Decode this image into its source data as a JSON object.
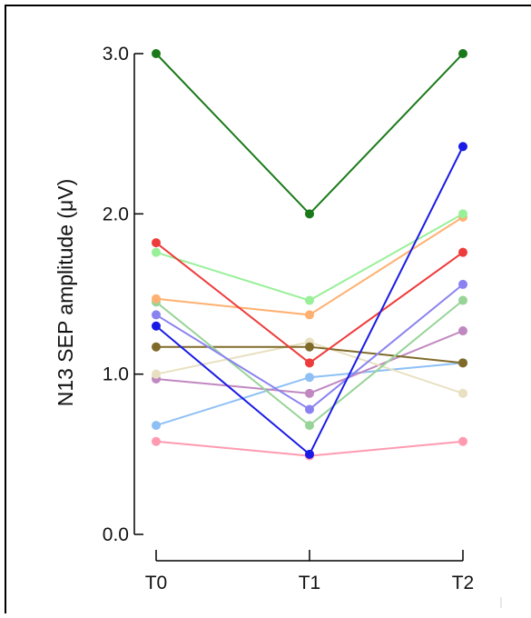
{
  "chart_data": {
    "type": "line",
    "title": "",
    "xlabel": "",
    "ylabel": "N13 SEP amplitude (μV)",
    "categories": [
      "T0",
      "T1",
      "T2"
    ],
    "ylim": [
      0,
      3.0
    ],
    "yticks": [
      "0.0",
      "1.0",
      "2.0",
      "3.0"
    ],
    "grid": false,
    "legend": "none",
    "series": [
      {
        "color": "#1a7a1a",
        "values": [
          3.0,
          2.0,
          3.0
        ]
      },
      {
        "color": "#1a1ae6",
        "values": [
          1.3,
          0.5,
          2.42
        ]
      },
      {
        "color": "#ff9ab0",
        "values": [
          0.58,
          0.49,
          0.58
        ]
      },
      {
        "color": "#ee3b3b",
        "values": [
          1.82,
          1.07,
          1.76
        ]
      },
      {
        "color": "#98f098",
        "values": [
          1.76,
          1.46,
          2.0
        ]
      },
      {
        "color": "#ffb070",
        "values": [
          1.47,
          1.37,
          1.98
        ]
      },
      {
        "color": "#8a82f0",
        "values": [
          1.37,
          0.78,
          1.56
        ]
      },
      {
        "color": "#98d498",
        "values": [
          1.45,
          0.68,
          1.46
        ]
      },
      {
        "color": "#806a2a",
        "values": [
          1.17,
          1.17,
          1.07
        ]
      },
      {
        "color": "#e8e0c0",
        "values": [
          1.0,
          1.2,
          0.88
        ]
      },
      {
        "color": "#c088c0",
        "values": [
          0.97,
          0.88,
          1.27
        ]
      },
      {
        "color": "#8ec0f5",
        "values": [
          0.68,
          0.98,
          1.07
        ]
      }
    ]
  }
}
